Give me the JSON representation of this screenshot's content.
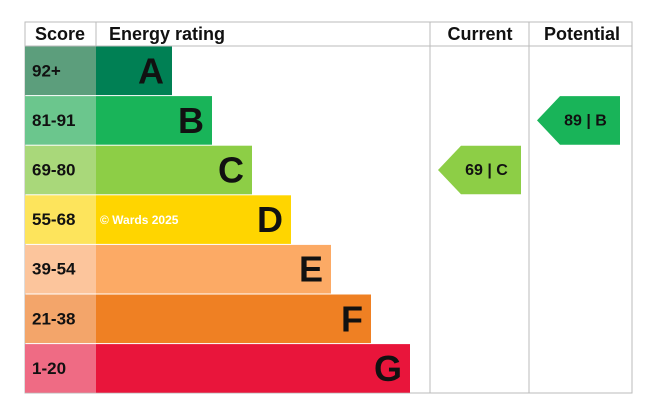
{
  "header": {
    "score": "Score",
    "energy_rating": "Energy rating",
    "current": "Current",
    "potential": "Potential"
  },
  "bands": [
    {
      "score": "92+",
      "letter": "A",
      "color": "#008054",
      "score_color": "#5c9e7c"
    },
    {
      "score": "81-91",
      "letter": "B",
      "color": "#19b459",
      "score_color": "#6bc68d"
    },
    {
      "score": "69-80",
      "letter": "C",
      "color": "#8dce46",
      "score_color": "#a9d87a"
    },
    {
      "score": "55-68",
      "letter": "D",
      "color": "#ffd500",
      "score_color": "#fde45c"
    },
    {
      "score": "39-54",
      "letter": "E",
      "color": "#fcaa65",
      "score_color": "#fcc59c"
    },
    {
      "score": "21-38",
      "letter": "F",
      "color": "#ef8023",
      "score_color": "#f3a56a"
    },
    {
      "score": "1-20",
      "letter": "G",
      "color": "#e9153b",
      "score_color": "#ef6b84"
    }
  ],
  "watermark": "© Wards 2025",
  "current": {
    "label": "69 | C",
    "letter": "C"
  },
  "potential": {
    "label": "89 | B",
    "letter": "B"
  }
}
